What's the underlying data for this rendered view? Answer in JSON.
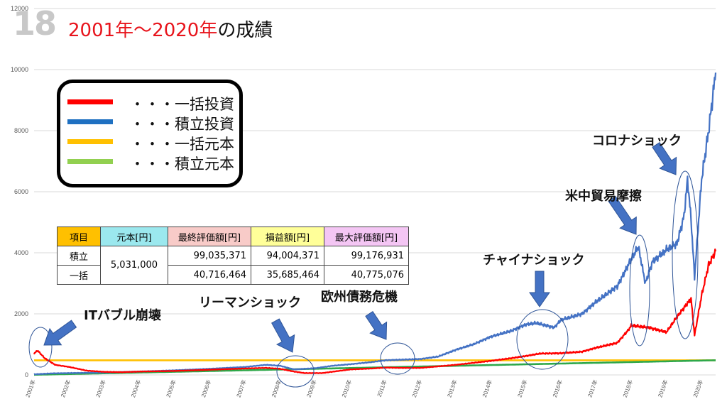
{
  "slide": {
    "number": "18",
    "title_red": "2001年〜2020年",
    "title_black": "の成績"
  },
  "colors": {
    "lump_sum_investment": "#ff0000",
    "dca_investment": "#4472c4",
    "lump_sum_principal": "#ffc000",
    "dca_principal": "#2ea84a",
    "arrow": "#4472c4"
  },
  "legend": [
    {
      "label": "・・・一括投資",
      "color": "#ff0000"
    },
    {
      "label": "・・・積立投資",
      "color": "#1f70c1"
    },
    {
      "label": "・・・一括元本",
      "color": "#ffc000"
    },
    {
      "label": "・・・積立元本",
      "color": "#92d050"
    }
  ],
  "table": {
    "headers": [
      {
        "label": "項目",
        "bg": "#ffc000"
      },
      {
        "label": "元本[円]",
        "bg": "#9be8ee"
      },
      {
        "label": "最終評価額[円]",
        "bg": "#f8cbc8"
      },
      {
        "label": "損益額[円]",
        "bg": "#ffff99"
      },
      {
        "label": "最大評価額[円]",
        "bg": "#f4c6f4"
      }
    ],
    "row1": {
      "item": "積立",
      "principal": "5,031,000",
      "final": "99,035,371",
      "profit": "94,004,371",
      "max": "99,176,931"
    },
    "row2": {
      "item": "一括",
      "final": "40,716,464",
      "profit": "35,685,464",
      "max": "40,775,076"
    }
  },
  "annotations": {
    "it_bubble": "ITバブル崩壊",
    "lehman": "リーマンショック",
    "euro_crisis": "欧州債務危機",
    "china_shock": "チャイナショック",
    "trade_friction": "米中貿易摩擦",
    "corona_shock": "コロナショック"
  },
  "chart_data": {
    "type": "line",
    "ylim": [
      0,
      12000
    ],
    "yticks": [
      0,
      2000,
      4000,
      6000,
      8000,
      10000,
      12000
    ],
    "xlim": [
      2001.0,
      2020.4
    ],
    "xticks": [
      "2001年",
      "2002年",
      "2003年",
      "2004年",
      "2005年",
      "2006年",
      "2007年",
      "2008年",
      "2009年",
      "2010年",
      "2011年",
      "2012年",
      "2013年",
      "2014年",
      "2015年",
      "2016年",
      "2017年",
      "2018年",
      "2019年",
      "2020年"
    ],
    "grid": "horizontal",
    "series": [
      {
        "name": "一括投資",
        "color": "#ff0000",
        "x": [
          2001.0,
          2001.1,
          2001.3,
          2001.6,
          2002.0,
          2002.5,
          2003.0,
          2003.5,
          2004.0,
          2005.0,
          2006.0,
          2007.0,
          2007.6,
          2008.0,
          2008.4,
          2008.7,
          2009.2,
          2009.6,
          2010.0,
          2010.6,
          2011.0,
          2011.5,
          2012.0,
          2012.5,
          2013.0,
          2014.0,
          2014.6,
          2015.0,
          2015.4,
          2016.0,
          2016.6,
          2017.0,
          2017.6,
          2017.9,
          2018.0,
          2018.5,
          2019.0,
          2019.3,
          2019.5,
          2019.7,
          2019.8,
          2020.0,
          2020.2,
          2020.4
        ],
        "y": [
          700,
          800,
          550,
          330,
          260,
          140,
          100,
          90,
          110,
          130,
          170,
          210,
          230,
          200,
          110,
          60,
          60,
          120,
          180,
          210,
          240,
          230,
          230,
          280,
          330,
          460,
          550,
          620,
          700,
          710,
          760,
          890,
          1050,
          1450,
          1620,
          1550,
          1400,
          1900,
          2200,
          2500,
          1300,
          2600,
          3600,
          4050
        ]
      },
      {
        "name": "積立投資",
        "color": "#4472c4",
        "x": [
          2001.0,
          2001.5,
          2002.0,
          2003.0,
          2004.0,
          2005.0,
          2006.0,
          2007.0,
          2007.6,
          2008.0,
          2008.4,
          2009.0,
          2009.5,
          2010.0,
          2010.6,
          2011.0,
          2011.5,
          2012.0,
          2012.5,
          2013.0,
          2013.5,
          2014.0,
          2014.6,
          2015.0,
          2015.3,
          2015.8,
          2016.0,
          2016.6,
          2017.0,
          2017.6,
          2018.0,
          2018.2,
          2018.4,
          2018.6,
          2019.0,
          2019.3,
          2019.5,
          2019.6,
          2019.7,
          2019.8,
          2020.0,
          2020.2,
          2020.4
        ],
        "y": [
          20,
          50,
          60,
          80,
          110,
          150,
          200,
          260,
          330,
          300,
          180,
          220,
          300,
          350,
          420,
          480,
          500,
          520,
          600,
          820,
          1000,
          1250,
          1450,
          1650,
          1700,
          1550,
          1800,
          2000,
          2400,
          2900,
          3800,
          4200,
          3000,
          3700,
          4100,
          4300,
          5200,
          6400,
          5100,
          3200,
          6400,
          8000,
          9900
        ]
      },
      {
        "name": "一括元本",
        "color": "#ffc000",
        "x": [
          2001.0,
          2020.4
        ],
        "y": [
          480,
          480
        ]
      },
      {
        "name": "積立元本",
        "color": "#2ea84a",
        "x": [
          2001.0,
          2020.4
        ],
        "y": [
          5,
          480
        ]
      }
    ]
  }
}
